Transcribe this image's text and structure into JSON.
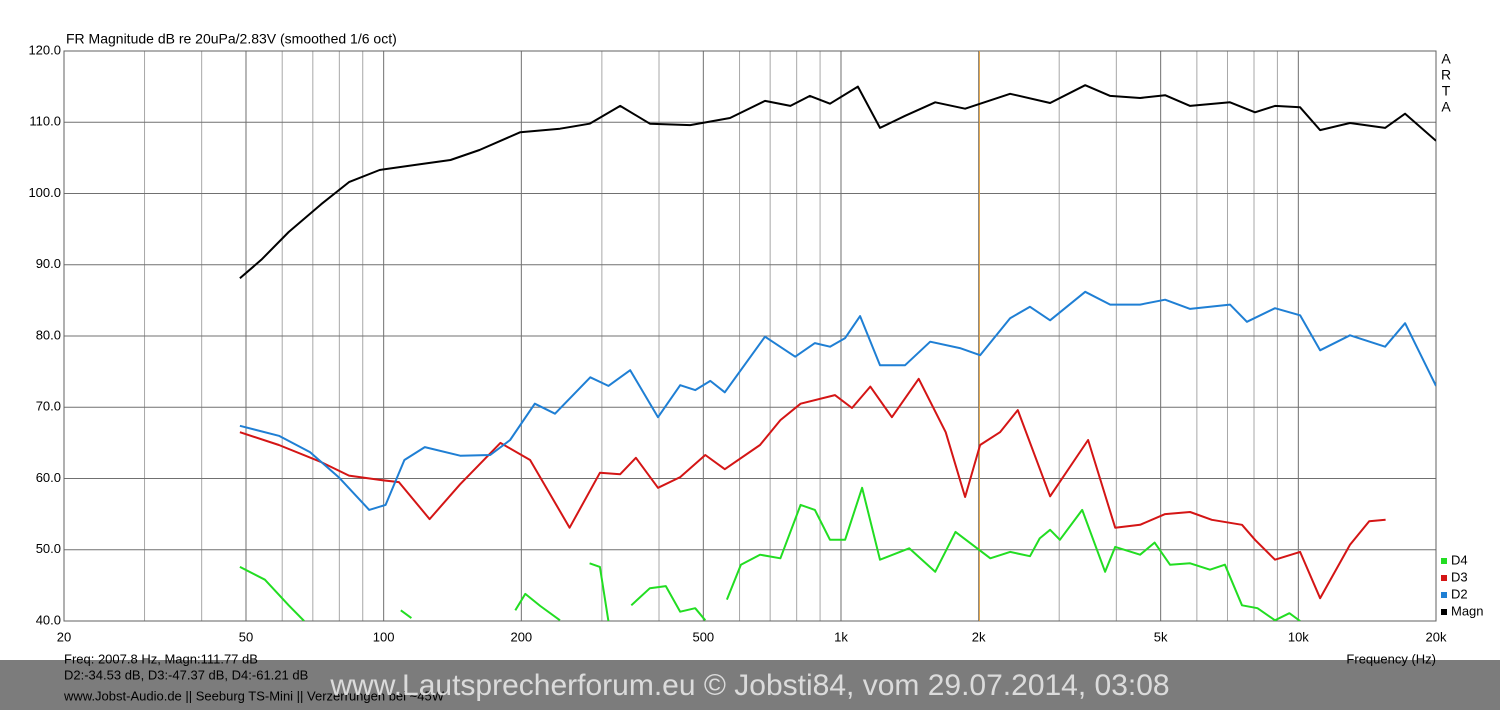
{
  "chart_data": {
    "type": "line",
    "title": "FR Magnitude dB re 20uPa/2.83V (smoothed 1/6 oct)",
    "brand": [
      "A",
      "R",
      "T",
      "A"
    ],
    "xlabel": "Frequency (Hz)",
    "x_scale": "log",
    "xlim": [
      20,
      20000
    ],
    "ylim": [
      40,
      120
    ],
    "xticks": [
      20,
      50,
      100,
      200,
      500,
      {
        "value": 1000,
        "label": "1k"
      },
      {
        "value": 2000,
        "label": "2k"
      },
      {
        "value": 5000,
        "label": "5k"
      },
      {
        "value": 10000,
        "label": "10k"
      },
      {
        "value": 20000,
        "label": "20k"
      }
    ],
    "xminorticks": [
      30,
      40,
      60,
      70,
      80,
      90,
      300,
      400,
      600,
      700,
      800,
      900,
      3000,
      4000,
      6000,
      7000,
      8000,
      9000
    ],
    "yticks": [
      {
        "value": 40,
        "label": "40.0"
      },
      {
        "value": 50,
        "label": "50.0"
      },
      {
        "value": 60,
        "label": "60.0"
      },
      {
        "value": 70,
        "label": "70.0"
      },
      {
        "value": 80,
        "label": "80.0"
      },
      {
        "value": 90,
        "label": "90.0"
      },
      {
        "value": 100,
        "label": "100.0"
      },
      {
        "value": 110,
        "label": "110.0"
      },
      {
        "value": 120,
        "label": "120.0"
      }
    ],
    "grid": true,
    "cursor_x": 2007.8,
    "cursor_color": "#e0a040",
    "legend": "lower right",
    "readout": [
      "Freq: 2007.8 Hz, Magn:111.77 dB",
      "D2:-34.53 dB, D3:-47.37 dB, D4:-61.21 dB",
      "www.Jobst-Audio.de  || Seeburg TS-Mini  ||  Verzerrungen bei ~45W"
    ],
    "watermark": "www.Lautsprecherforum.eu © Jobsti84, vom 29.07.2014, 03:08",
    "series": [
      {
        "name": "D4",
        "color": "#22dd22",
        "x": [
          48.5,
          55,
          62,
          67,
          80,
          109,
          115,
          130,
          194,
          204,
          220,
          243,
          260,
          282,
          297,
          310,
          330,
          348,
          382,
          414,
          445,
          480,
          505,
          530,
          563,
          604,
          665,
          737,
          816,
          877,
          946,
          1021,
          1112,
          1217,
          1410,
          1607,
          1780,
          2121,
          2343,
          2590,
          2720,
          2866,
          3010,
          3368,
          3780,
          3977,
          4509,
          4850,
          5240,
          5800,
          6410,
          6910,
          7530,
          8140,
          8890,
          9560,
          10090
        ],
        "values": [
          47.6,
          45.8,
          42.2,
          40.0,
          null,
          41.5,
          40.4,
          null,
          41.5,
          43.8,
          42.1,
          40.1,
          null,
          48.1,
          47.6,
          40.0,
          null,
          42.2,
          44.6,
          44.9,
          41.3,
          41.8,
          40.1,
          null,
          43.0,
          47.9,
          49.3,
          48.8,
          56.3,
          55.6,
          51.4,
          51.4,
          58.7,
          48.6,
          50.2,
          46.9,
          52.5,
          48.8,
          49.7,
          49.1,
          51.6,
          52.8,
          51.4,
          55.6,
          46.9,
          50.4,
          49.3,
          51.0,
          47.9,
          48.1,
          47.2,
          47.9,
          42.2,
          41.8,
          40.1,
          41.1,
          40.0
        ]
      },
      {
        "name": "D3",
        "color": "#d41515",
        "x": [
          48.5,
          59,
          73,
          84,
          98,
          108,
          126,
          147,
          180,
          209,
          255,
          297,
          329,
          356,
          398,
          445,
          505,
          557,
          665,
          737,
          816,
          970,
          1057,
          1159,
          1292,
          1479,
          1694,
          1868,
          2014,
          2227,
          2435,
          2866,
          3470,
          3977,
          4509,
          5114,
          5800,
          6470,
          7530,
          8040,
          8890,
          10090,
          11160,
          12970,
          14290,
          15520
        ],
        "values": [
          66.5,
          64.7,
          62.3,
          60.4,
          59.8,
          59.5,
          54.3,
          59.2,
          65.0,
          62.6,
          53.1,
          60.8,
          60.6,
          62.9,
          58.7,
          60.2,
          63.3,
          61.3,
          64.7,
          68.2,
          70.5,
          71.7,
          69.9,
          72.9,
          68.6,
          74.0,
          66.5,
          57.4,
          64.7,
          66.5,
          69.6,
          57.5,
          65.4,
          53.1,
          53.5,
          55.0,
          55.3,
          54.2,
          53.5,
          51.4,
          48.6,
          49.7,
          43.2,
          50.7,
          54.0,
          54.2
        ]
      },
      {
        "name": "D2",
        "color": "#1f7fd4",
        "x": [
          48.5,
          59,
          69,
          80,
          93,
          101,
          111,
          123,
          147,
          171,
          189,
          214,
          237,
          283,
          310,
          346,
          398,
          445,
          480,
          518,
          557,
          682,
          794,
          877,
          946,
          1021,
          1101,
          1217,
          1381,
          1567,
          1820,
          2014,
          2343,
          2590,
          2866,
          3419,
          3878,
          4509,
          5114,
          5800,
          7090,
          7720,
          8890,
          10090,
          11160,
          12970,
          15480,
          17120,
          20000
        ],
        "values": [
          67.4,
          66.0,
          63.7,
          60.1,
          55.6,
          56.3,
          62.6,
          64.4,
          63.2,
          63.3,
          65.4,
          70.5,
          69.1,
          74.2,
          73.0,
          75.2,
          68.6,
          73.1,
          72.4,
          73.7,
          72.1,
          79.9,
          77.1,
          79.0,
          78.5,
          79.7,
          82.8,
          75.9,
          75.9,
          79.2,
          78.3,
          77.3,
          82.5,
          84.1,
          82.2,
          86.2,
          84.4,
          84.4,
          85.1,
          83.8,
          84.4,
          82.0,
          83.9,
          82.9,
          78.0,
          80.1,
          78.5,
          81.8,
          73.0
        ]
      },
      {
        "name": "Magn",
        "color": "#000000",
        "x": [
          48.5,
          54,
          62,
          73,
          84,
          98,
          120,
          140,
          162,
          199,
          243,
          282,
          329,
          382,
          468,
          572,
          682,
          775,
          855,
          946,
          1089,
          1217,
          1381,
          1607,
          1868,
          2343,
          2866,
          3419,
          3878,
          4509,
          5114,
          5800,
          7090,
          8040,
          8890,
          10090,
          11160,
          12970,
          15480,
          17120,
          20000
        ],
        "values": [
          88.1,
          90.7,
          94.6,
          98.5,
          101.6,
          103.3,
          104.1,
          104.7,
          106.1,
          108.6,
          109.1,
          109.8,
          112.3,
          109.8,
          109.6,
          110.6,
          113.0,
          112.3,
          113.7,
          112.6,
          115.0,
          109.2,
          110.9,
          112.8,
          111.9,
          114.0,
          112.7,
          115.2,
          113.7,
          113.4,
          113.8,
          112.3,
          112.8,
          111.4,
          112.3,
          112.1,
          108.9,
          109.9,
          109.2,
          111.2,
          107.4
        ]
      }
    ]
  }
}
